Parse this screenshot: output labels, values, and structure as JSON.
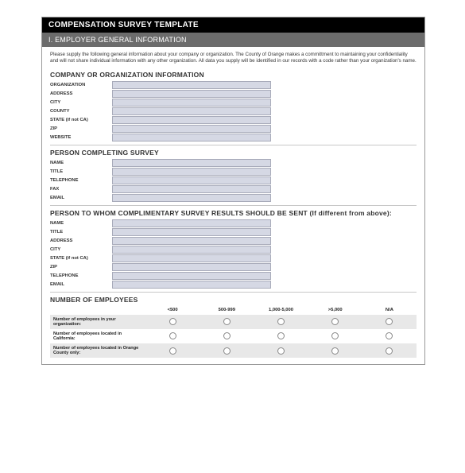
{
  "title_bar": "COMPENSATION SURVEY TEMPLATE",
  "section_bar": "I. EMPLOYER GENERAL INFORMATION",
  "intro": "Please supply the following general information about your company or organization. The County of Orange makes a committment to maintaining your confidentiality and will not share individual information with any other organization. All data you supply will be identified in our records with a code rather than your organization's name.",
  "sections": {
    "company": {
      "heading": "COMPANY OR ORGANIZATION INFORMATION",
      "fields": [
        {
          "label": "ORGANIZATION",
          "value": ""
        },
        {
          "label": "ADDRESS",
          "value": ""
        },
        {
          "label": "CITY",
          "value": ""
        },
        {
          "label": "COUNTY",
          "value": ""
        },
        {
          "label": "STATE (if not CA)",
          "value": ""
        },
        {
          "label": "ZIP",
          "value": ""
        },
        {
          "label": "WEBSITE",
          "value": ""
        }
      ]
    },
    "person_completing": {
      "heading": "PERSON COMPLETING SURVEY",
      "fields": [
        {
          "label": "NAME",
          "value": ""
        },
        {
          "label": "TITLE",
          "value": ""
        },
        {
          "label": "TELEPHONE",
          "value": ""
        },
        {
          "label": "FAX",
          "value": ""
        },
        {
          "label": "EMAIL",
          "value": ""
        }
      ]
    },
    "person_results": {
      "heading": "PERSON TO WHOM COMPLIMENTARY SURVEY RESULTS SHOULD BE SENT (If different from above):",
      "fields": [
        {
          "label": "NAME",
          "value": ""
        },
        {
          "label": "TITLE",
          "value": ""
        },
        {
          "label": "ADDRESS",
          "value": ""
        },
        {
          "label": "CITY",
          "value": ""
        },
        {
          "label": "STATE (if not CA)",
          "value": ""
        },
        {
          "label": "ZIP",
          "value": ""
        },
        {
          "label": "TELEPHONE",
          "value": ""
        },
        {
          "label": "EMAIL",
          "value": ""
        }
      ]
    },
    "employees": {
      "heading": "NUMBER OF EMPLOYEES",
      "columns": [
        "<500",
        "500-999",
        "1,000-5,000",
        ">5,000",
        "N/A"
      ],
      "rows": [
        {
          "label": "Number of employees in your organization:",
          "alt": true
        },
        {
          "label": "Number of employees located in California:",
          "alt": false
        },
        {
          "label": "Number of employees located in Orange County only:",
          "alt": true
        }
      ]
    }
  },
  "colors": {
    "header_black_bg": "#000000",
    "header_gray_bg": "#6c6c6c",
    "header_text": "#ffffff",
    "input_bg": "#d5d8e4",
    "input_border": "#a8abba",
    "row_alt_bg": "#e8e8e8",
    "text": "#333333",
    "divider": "#c8c8c8"
  }
}
